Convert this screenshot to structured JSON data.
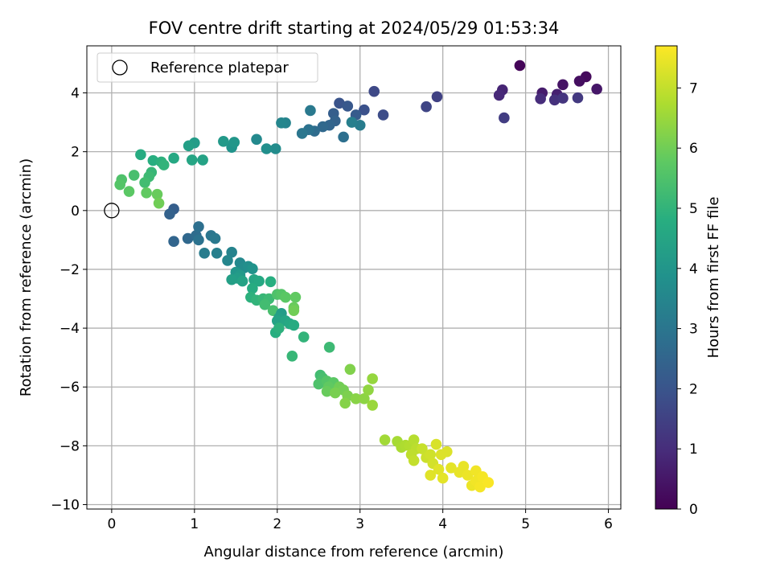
{
  "chart_data": {
    "type": "scatter",
    "title": "FOV centre drift starting at 2024/05/29 01:53:34",
    "xlabel": "Angular distance from reference (arcmin)",
    "ylabel": "Rotation from reference (arcmin)",
    "xlim": [
      -0.3,
      6.15
    ],
    "ylim": [
      -10.15,
      5.6
    ],
    "xticks": [
      0,
      1,
      2,
      3,
      4,
      5,
      6
    ],
    "yticks": [
      -10,
      -8,
      -6,
      -4,
      -2,
      0,
      2,
      4
    ],
    "grid": true,
    "legend": {
      "placement": "top-left",
      "entries": [
        "Reference platepar"
      ]
    },
    "reference_point": {
      "x": 0,
      "y": 0,
      "label": "Reference platepar"
    },
    "colorbar": {
      "label": "Hours from first FF file",
      "range": [
        0,
        7.7
      ],
      "ticks": [
        0,
        1,
        2,
        3,
        4,
        5,
        6,
        7
      ],
      "colormap": "viridis"
    },
    "points": [
      [
        4.93,
        4.93,
        0.1
      ],
      [
        5.73,
        4.55,
        0.2
      ],
      [
        5.65,
        4.4,
        0.3
      ],
      [
        5.45,
        4.28,
        0.4
      ],
      [
        5.86,
        4.13,
        0.5
      ],
      [
        5.2,
        4.0,
        0.6
      ],
      [
        5.38,
        3.95,
        0.7
      ],
      [
        4.72,
        4.1,
        0.8
      ],
      [
        4.68,
        3.92,
        0.9
      ],
      [
        5.18,
        3.8,
        1.0
      ],
      [
        5.35,
        3.76,
        1.1
      ],
      [
        5.45,
        3.82,
        1.2
      ],
      [
        5.63,
        3.83,
        1.3
      ],
      [
        4.74,
        3.15,
        1.4
      ],
      [
        3.93,
        3.87,
        1.5
      ],
      [
        3.8,
        3.53,
        1.6
      ],
      [
        3.17,
        4.05,
        1.7
      ],
      [
        3.28,
        3.25,
        1.8
      ],
      [
        3.05,
        3.42,
        1.9
      ],
      [
        2.75,
        3.65,
        2.0
      ],
      [
        2.85,
        3.55,
        2.1
      ],
      [
        2.95,
        3.25,
        2.2
      ],
      [
        2.68,
        3.3,
        2.3
      ],
      [
        2.7,
        3.05,
        2.4
      ],
      [
        2.63,
        2.9,
        2.5
      ],
      [
        2.55,
        2.85,
        2.6
      ],
      [
        2.45,
        2.7,
        2.7
      ],
      [
        2.8,
        2.5,
        2.8
      ],
      [
        2.38,
        2.75,
        2.9
      ],
      [
        2.3,
        2.62,
        3.0
      ],
      [
        2.4,
        3.4,
        3.1
      ],
      [
        3.0,
        2.9,
        3.2
      ],
      [
        2.9,
        3.0,
        3.3
      ],
      [
        2.1,
        2.98,
        3.4
      ],
      [
        2.05,
        2.98,
        3.5
      ],
      [
        1.75,
        2.42,
        3.6
      ],
      [
        1.98,
        2.1,
        3.7
      ],
      [
        1.87,
        2.1,
        3.8
      ],
      [
        1.45,
        2.15,
        3.9
      ],
      [
        1.48,
        2.32,
        4.0
      ],
      [
        1.35,
        2.35,
        4.1
      ],
      [
        1.0,
        2.3,
        4.2
      ],
      [
        0.93,
        2.2,
        4.3
      ],
      [
        1.1,
        1.72,
        4.4
      ],
      [
        0.97,
        1.72,
        4.5
      ],
      [
        0.75,
        1.78,
        4.6
      ],
      [
        0.35,
        1.9,
        4.7
      ],
      [
        0.5,
        1.7,
        4.8
      ],
      [
        0.6,
        1.65,
        4.9
      ],
      [
        0.63,
        1.55,
        5.0
      ],
      [
        0.48,
        1.3,
        5.1
      ],
      [
        0.45,
        1.15,
        5.2
      ],
      [
        0.4,
        0.95,
        5.3
      ],
      [
        0.27,
        1.2,
        5.4
      ],
      [
        0.12,
        1.05,
        5.5
      ],
      [
        0.1,
        0.88,
        5.6
      ],
      [
        0.21,
        0.65,
        5.7
      ],
      [
        0.42,
        0.6,
        5.8
      ],
      [
        0.55,
        0.55,
        5.9
      ],
      [
        0.57,
        0.25,
        6.0
      ],
      [
        0.75,
        0.05,
        2.3
      ],
      [
        0.7,
        -0.12,
        2.4
      ],
      [
        0.75,
        -1.05,
        2.5
      ],
      [
        0.92,
        -0.95,
        2.6
      ],
      [
        1.02,
        -0.85,
        2.7
      ],
      [
        1.05,
        -0.55,
        2.8
      ],
      [
        1.05,
        -1.0,
        2.9
      ],
      [
        1.2,
        -0.85,
        3.0
      ],
      [
        1.25,
        -0.95,
        3.1
      ],
      [
        1.12,
        -1.45,
        3.2
      ],
      [
        1.27,
        -1.45,
        3.3
      ],
      [
        1.45,
        -1.42,
        3.4
      ],
      [
        1.4,
        -1.7,
        3.5
      ],
      [
        1.55,
        -1.78,
        3.6
      ],
      [
        1.6,
        -1.95,
        3.7
      ],
      [
        1.65,
        -1.9,
        3.8
      ],
      [
        1.7,
        -1.98,
        3.9
      ],
      [
        1.5,
        -2.1,
        4.0
      ],
      [
        1.55,
        -2.2,
        4.1
      ],
      [
        1.52,
        -2.3,
        4.2
      ],
      [
        1.45,
        -2.35,
        4.3
      ],
      [
        1.58,
        -2.4,
        4.4
      ],
      [
        1.72,
        -2.35,
        4.5
      ],
      [
        1.78,
        -2.4,
        4.6
      ],
      [
        1.7,
        -2.65,
        4.7
      ],
      [
        1.92,
        -2.42,
        4.8
      ],
      [
        1.68,
        -2.95,
        4.9
      ],
      [
        1.75,
        -3.05,
        5.0
      ],
      [
        1.83,
        -3.0,
        5.1
      ],
      [
        1.9,
        -3.0,
        5.2
      ],
      [
        1.85,
        -3.2,
        5.3
      ],
      [
        1.95,
        -3.4,
        5.4
      ],
      [
        2.0,
        -2.85,
        5.5
      ],
      [
        2.05,
        -2.85,
        5.6
      ],
      [
        2.1,
        -2.95,
        5.7
      ],
      [
        2.22,
        -2.95,
        5.8
      ],
      [
        2.2,
        -3.3,
        5.9
      ],
      [
        2.2,
        -3.4,
        6.0
      ],
      [
        2.05,
        -3.5,
        4.2
      ],
      [
        2.02,
        -3.65,
        4.3
      ],
      [
        2.0,
        -3.75,
        4.4
      ],
      [
        2.1,
        -3.75,
        4.5
      ],
      [
        2.15,
        -3.85,
        4.6
      ],
      [
        2.2,
        -3.9,
        4.7
      ],
      [
        1.98,
        -4.15,
        4.8
      ],
      [
        2.02,
        -4.0,
        4.9
      ],
      [
        2.32,
        -4.3,
        5.0
      ],
      [
        2.18,
        -4.95,
        5.1
      ],
      [
        2.63,
        -4.65,
        5.2
      ],
      [
        2.52,
        -5.6,
        5.3
      ],
      [
        2.55,
        -5.7,
        5.4
      ],
      [
        2.5,
        -5.9,
        5.5
      ],
      [
        2.6,
        -5.8,
        5.6
      ],
      [
        2.68,
        -5.85,
        5.7
      ],
      [
        2.62,
        -6.0,
        5.8
      ],
      [
        2.6,
        -6.15,
        5.9
      ],
      [
        2.75,
        -6.0,
        6.0
      ],
      [
        2.8,
        -6.1,
        6.05
      ],
      [
        2.7,
        -6.2,
        6.1
      ],
      [
        2.85,
        -6.3,
        6.15
      ],
      [
        2.88,
        -5.4,
        6.2
      ],
      [
        2.82,
        -6.55,
        6.25
      ],
      [
        2.95,
        -6.4,
        6.3
      ],
      [
        3.05,
        -6.4,
        6.35
      ],
      [
        3.1,
        -6.1,
        6.4
      ],
      [
        3.15,
        -5.72,
        6.45
      ],
      [
        3.15,
        -6.62,
        6.5
      ],
      [
        3.3,
        -7.8,
        6.6
      ],
      [
        3.45,
        -7.85,
        6.65
      ],
      [
        3.5,
        -8.05,
        6.7
      ],
      [
        3.55,
        -7.98,
        6.75
      ],
      [
        3.6,
        -8.0,
        6.8
      ],
      [
        3.65,
        -7.8,
        6.85
      ],
      [
        3.68,
        -8.1,
        6.9
      ],
      [
        3.62,
        -8.3,
        6.95
      ],
      [
        3.65,
        -8.5,
        7.0
      ],
      [
        3.75,
        -8.1,
        7.05
      ],
      [
        3.8,
        -8.4,
        7.1
      ],
      [
        3.85,
        -8.3,
        7.15
      ],
      [
        3.88,
        -8.6,
        7.2
      ],
      [
        3.92,
        -7.95,
        7.25
      ],
      [
        3.98,
        -8.3,
        7.3
      ],
      [
        4.05,
        -8.2,
        7.3
      ],
      [
        3.85,
        -9.0,
        7.35
      ],
      [
        3.95,
        -8.8,
        7.35
      ],
      [
        4.0,
        -9.1,
        7.4
      ],
      [
        4.1,
        -8.75,
        7.4
      ],
      [
        4.2,
        -8.9,
        7.45
      ],
      [
        4.25,
        -8.7,
        7.45
      ],
      [
        4.3,
        -9.0,
        7.5
      ],
      [
        4.35,
        -9.35,
        7.5
      ],
      [
        4.4,
        -8.85,
        7.55
      ],
      [
        4.4,
        -9.2,
        7.55
      ],
      [
        4.45,
        -9.4,
        7.6
      ],
      [
        4.48,
        -9.05,
        7.6
      ],
      [
        4.55,
        -9.25,
        7.65
      ]
    ]
  }
}
